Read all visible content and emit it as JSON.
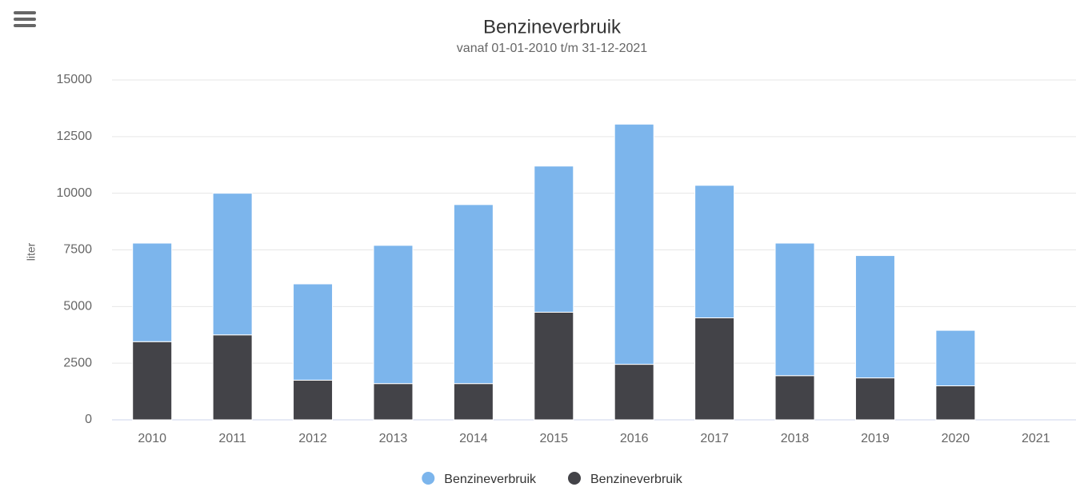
{
  "chart_data": {
    "type": "bar",
    "stacked": true,
    "title": "Benzineverbruik",
    "subtitle": "vanaf 01-01-2010 t/m 31-12-2021",
    "y_label": "liter",
    "categories": [
      "2010",
      "2011",
      "2012",
      "2013",
      "2014",
      "2015",
      "2016",
      "2017",
      "2018",
      "2019",
      "2020",
      "2021"
    ],
    "series": [
      {
        "name": "Benzineverbruik",
        "color": "#7cb5ec",
        "values": [
          4350,
          6250,
          4250,
          6100,
          7900,
          6450,
          10600,
          5850,
          5850,
          5400,
          2450,
          null
        ]
      },
      {
        "name": "Benzineverbruik",
        "color": "#434348",
        "values": [
          3450,
          3750,
          1750,
          1600,
          1600,
          4750,
          2450,
          4500,
          1950,
          1850,
          1500,
          null
        ]
      }
    ],
    "ylim": [
      0,
      15000
    ],
    "yticks": [
      0,
      2500,
      5000,
      7500,
      10000,
      12500,
      15000
    ],
    "grid": true,
    "legend": "bottom"
  }
}
